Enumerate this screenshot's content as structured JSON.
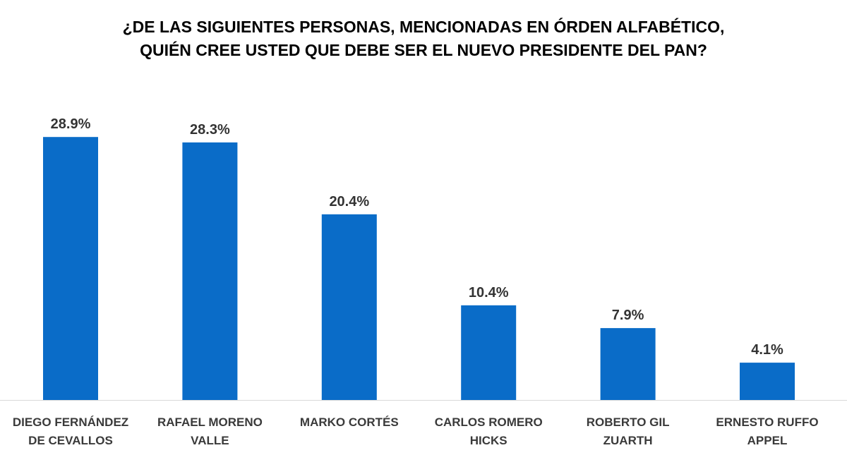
{
  "chart_data": {
    "type": "bar",
    "title_lines": [
      "¿DE LAS SIGUIENTES PERSONAS, MENCIONADAS EN ÓRDEN ALFABÉTICO,",
      "QUIÉN CREE USTED QUE DEBE SER EL NUEVO PRESIDENTE DEL PAN?"
    ],
    "categories": [
      [
        "DIEGO FERNÁNDEZ",
        "DE CEVALLOS"
      ],
      [
        "RAFAEL MORENO",
        "VALLE"
      ],
      [
        "MARKO CORTÉS"
      ],
      [
        "CARLOS ROMERO",
        "HICKS"
      ],
      [
        "ROBERTO GIL",
        "ZUARTH"
      ],
      [
        "ERNESTO RUFFO",
        "APPEL"
      ]
    ],
    "values": [
      28.9,
      28.3,
      20.4,
      10.4,
      7.9,
      4.1
    ],
    "data_labels": [
      "28.9%",
      "28.3%",
      "20.4%",
      "10.4%",
      "7.9%",
      "4.1%"
    ],
    "ylim": [
      0,
      30
    ],
    "xlabel": "",
    "ylabel": "",
    "grid": false,
    "legend": "none",
    "colors": {
      "bar": "#0A6CC8",
      "axis": "#D9D9D9",
      "value_text": "#333333",
      "category_text": "#3A3A3A",
      "title_text": "#000000"
    }
  }
}
